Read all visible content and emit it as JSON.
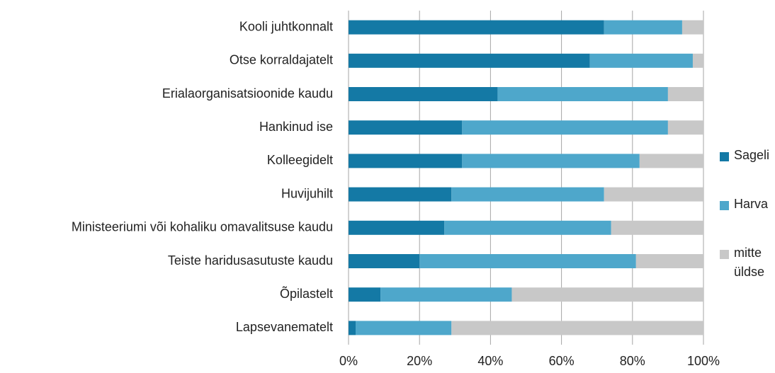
{
  "chart_data": {
    "type": "stacked_barh",
    "categories": [
      "Kooli juhtkonnalt",
      "Otse korraldajatelt",
      "Erialaorganisatsioonide kaudu",
      "Hankinud ise",
      "Kolleegidelt",
      "Huvijuhilt",
      "Ministeeriumi või kohaliku omavalitsuse kaudu",
      "Teiste haridusasutuste kaudu",
      "Õpilastelt",
      "Lapsevanematelt"
    ],
    "series": [
      {
        "name": "Sageli",
        "color": "#1479a5",
        "values": [
          72,
          68,
          42,
          32,
          32,
          29,
          27,
          20,
          9,
          2
        ]
      },
      {
        "name": "Harva",
        "color": "#4ea7cb",
        "values": [
          22,
          29,
          48,
          58,
          50,
          43,
          47,
          61,
          37,
          27
        ]
      },
      {
        "name": "mitte üldse",
        "color": "#c8c8c8",
        "values": [
          6,
          3,
          10,
          10,
          18,
          28,
          26,
          19,
          54,
          71
        ]
      }
    ],
    "xlim": [
      0,
      100
    ],
    "xticks": [
      {
        "value": 0,
        "label": "0%"
      },
      {
        "value": 20,
        "label": "20%"
      },
      {
        "value": 40,
        "label": "40%"
      },
      {
        "value": 60,
        "label": "60%"
      },
      {
        "value": 80,
        "label": "80%"
      },
      {
        "value": 100,
        "label": "100%"
      }
    ],
    "grid": true,
    "legend": "right"
  }
}
